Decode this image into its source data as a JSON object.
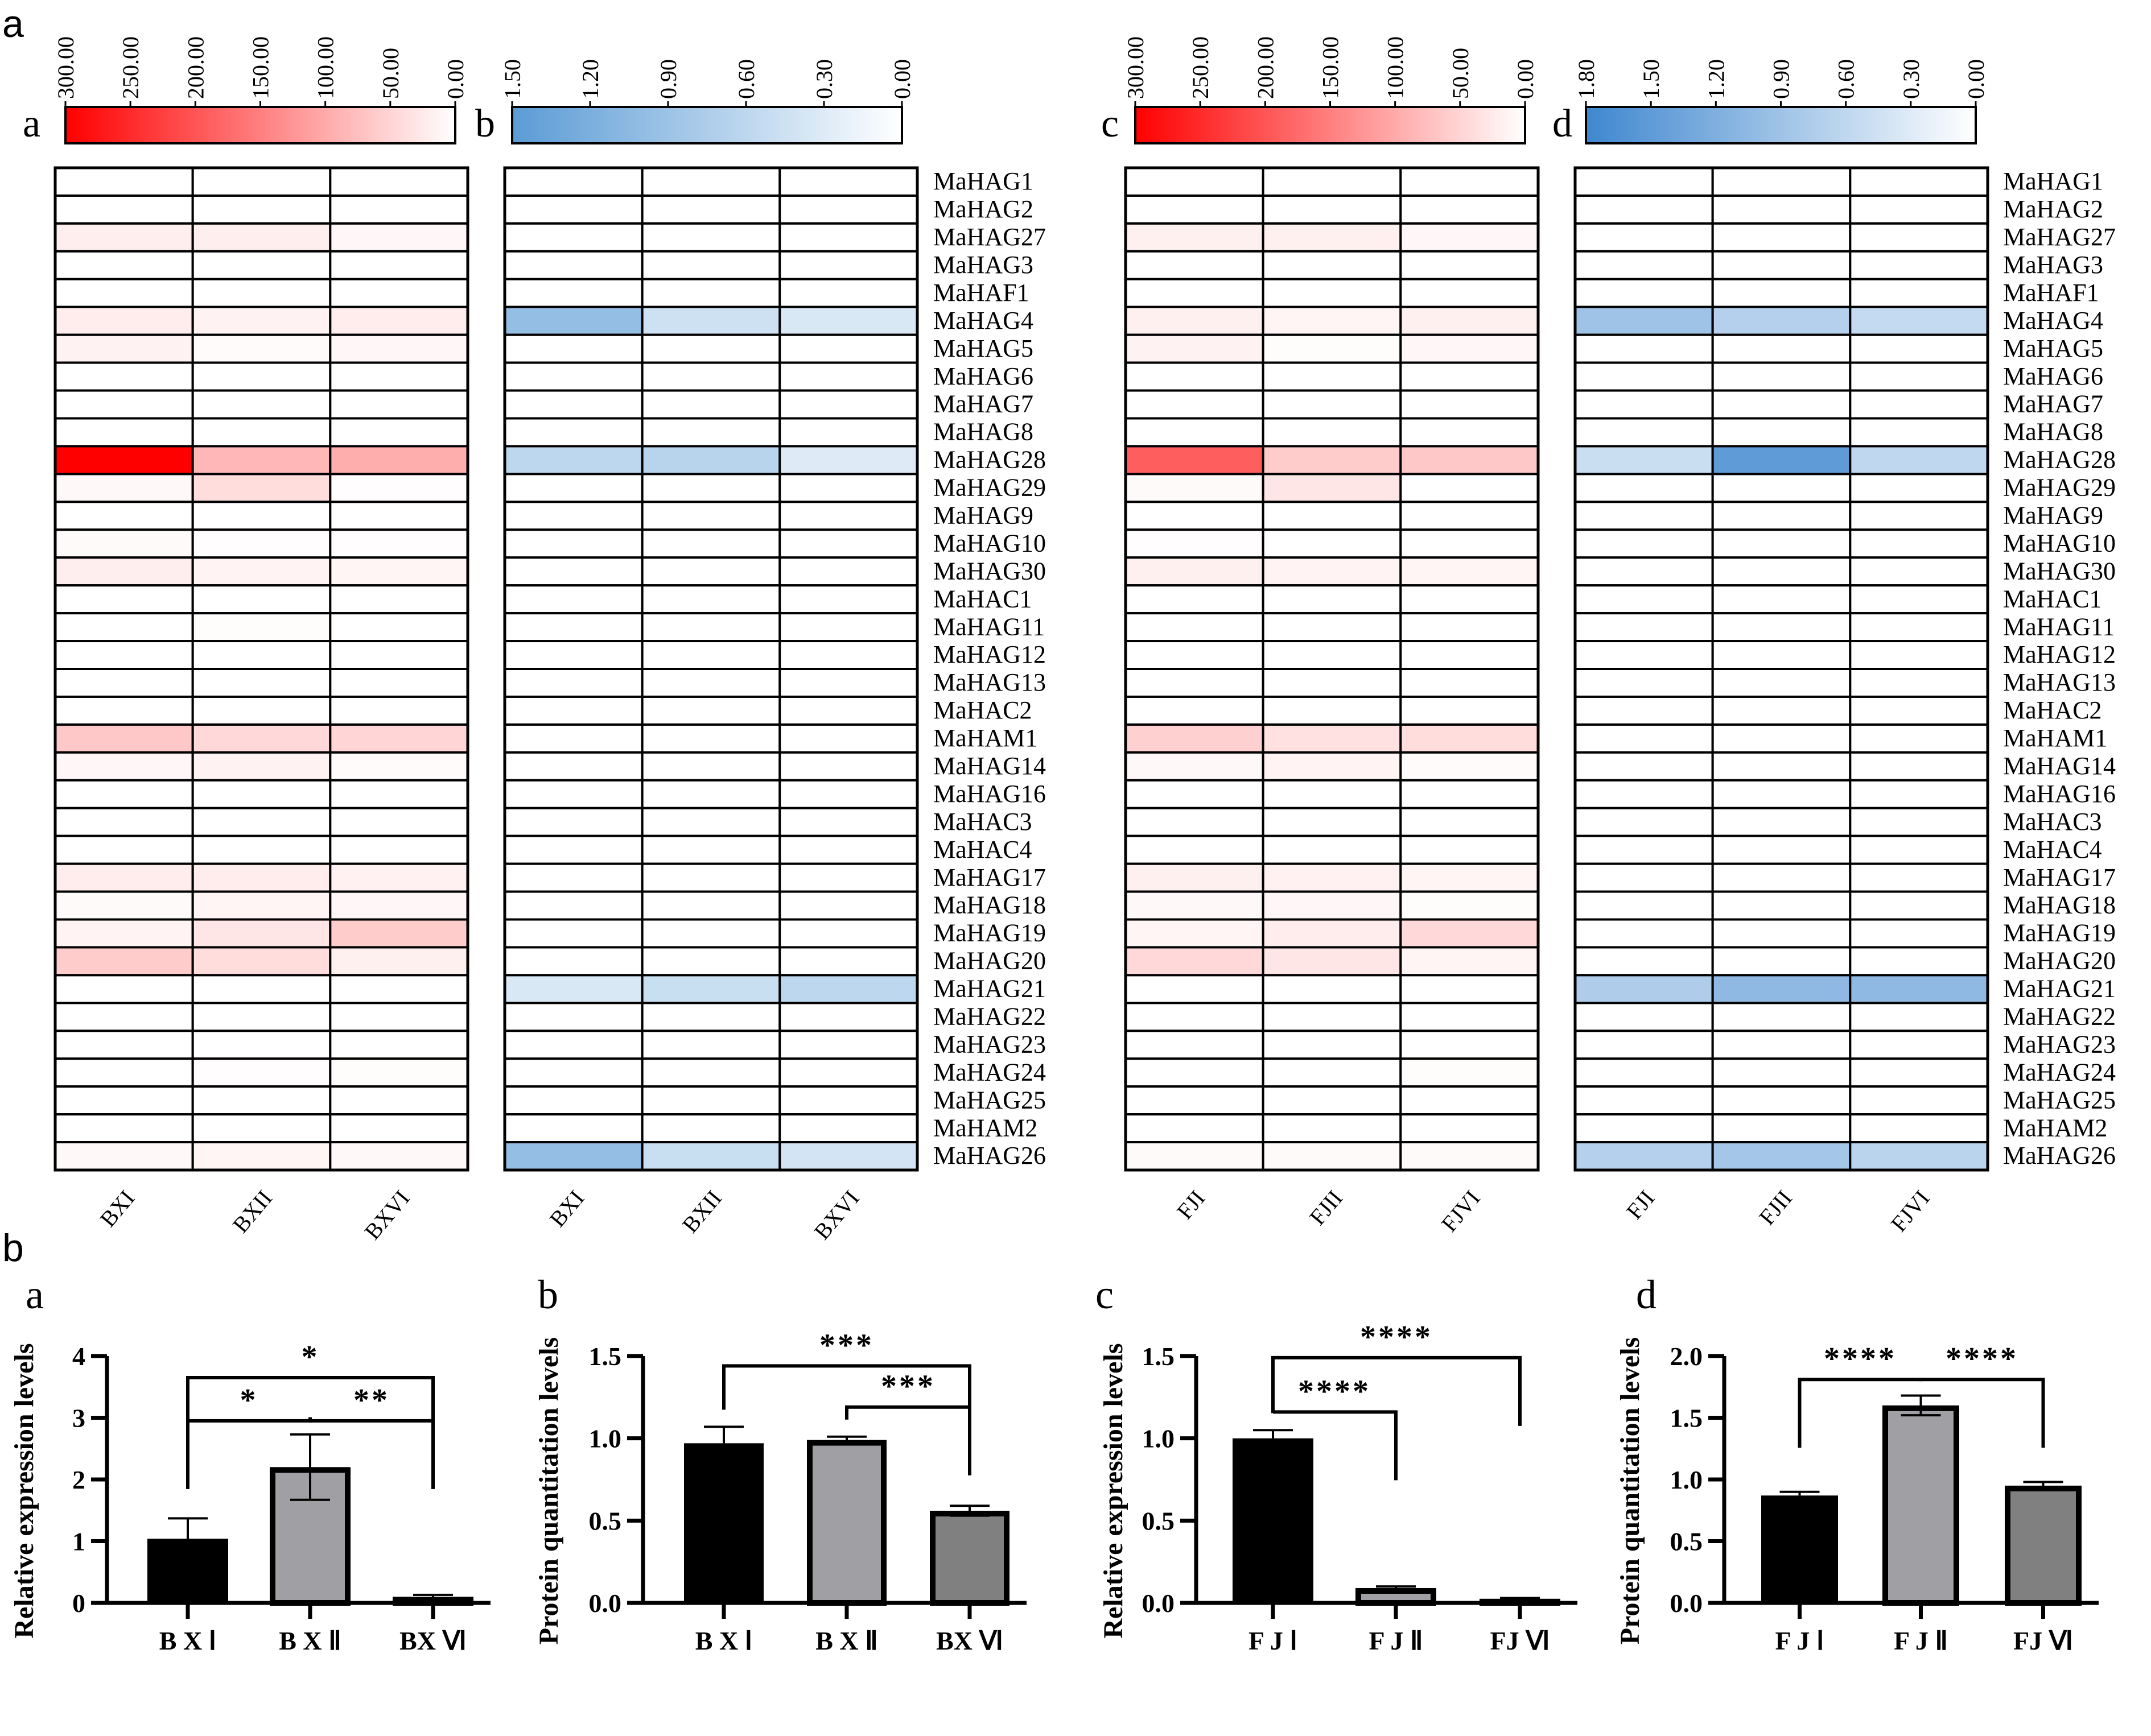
{
  "figure": {
    "section_a_label": "a",
    "section_b_label": "b"
  },
  "chart_data": [
    {
      "type": "heatmap",
      "panel": "a",
      "colorscale": {
        "low": "#ffffff",
        "high": "#ff0000"
      },
      "colorbar_ticks": [
        "300.00",
        "250.00",
        "200.00",
        "150.00",
        "100.00",
        "50.00",
        "0.00"
      ],
      "range": [
        0,
        300
      ],
      "columns": [
        "BXI",
        "BXII",
        "BXVI"
      ],
      "rows": [
        "MaHAG1",
        "MaHAG2",
        "MaHAG27",
        "MaHAG3",
        "MaHAF1",
        "MaHAG4",
        "MaHAG5",
        "MaHAG6",
        "MaHAG7",
        "MaHAG8",
        "MaHAG28",
        "MaHAG29",
        "MaHAG9",
        "MaHAG10",
        "MaHAG30",
        "MaHAC1",
        "MaHAG11",
        "MaHAG12",
        "MaHAG13",
        "MaHAC2",
        "MaHAM1",
        "MaHAG14",
        "MaHAG16",
        "MaHAC3",
        "MaHAC4",
        "MaHAG17",
        "MaHAG18",
        "MaHAG19",
        "MaHAG20",
        "MaHAG21",
        "MaHAG22",
        "MaHAG23",
        "MaHAG24",
        "MaHAG25",
        "MaHAM2",
        "MaHAG26"
      ],
      "values": [
        [
          0,
          0,
          0
        ],
        [
          0,
          0,
          0
        ],
        [
          20,
          20,
          10
        ],
        [
          0,
          0,
          0
        ],
        [
          0,
          0,
          0
        ],
        [
          22,
          15,
          22
        ],
        [
          15,
          5,
          10
        ],
        [
          0,
          0,
          0
        ],
        [
          0,
          0,
          0
        ],
        [
          0,
          0,
          0
        ],
        [
          300,
          85,
          95
        ],
        [
          8,
          40,
          2
        ],
        [
          0,
          0,
          0
        ],
        [
          6,
          2,
          2
        ],
        [
          20,
          14,
          12
        ],
        [
          0,
          0,
          0
        ],
        [
          0,
          3,
          0
        ],
        [
          0,
          0,
          0
        ],
        [
          0,
          0,
          0
        ],
        [
          0,
          0,
          0
        ],
        [
          65,
          45,
          50
        ],
        [
          10,
          15,
          5
        ],
        [
          0,
          0,
          0
        ],
        [
          0,
          0,
          0
        ],
        [
          0,
          0,
          0
        ],
        [
          22,
          22,
          16
        ],
        [
          6,
          12,
          10
        ],
        [
          14,
          30,
          60
        ],
        [
          60,
          40,
          18
        ],
        [
          0,
          0,
          0
        ],
        [
          0,
          0,
          0
        ],
        [
          0,
          0,
          0
        ],
        [
          0,
          2,
          4
        ],
        [
          0,
          0,
          0
        ],
        [
          0,
          0,
          0
        ],
        [
          8,
          12,
          8
        ]
      ]
    },
    {
      "type": "heatmap",
      "panel": "b",
      "colorscale": {
        "low": "#ffffff",
        "high": "#5b9bd5"
      },
      "colorbar_ticks": [
        "1.50",
        "1.20",
        "0.90",
        "0.60",
        "0.30",
        "0.00"
      ],
      "range": [
        0,
        1.5
      ],
      "columns": [
        "BXI",
        "BXII",
        "BXVI"
      ],
      "rows": [
        "MaHAG1",
        "MaHAG2",
        "MaHAG27",
        "MaHAG3",
        "MaHAF1",
        "MaHAG4",
        "MaHAG5",
        "MaHAG6",
        "MaHAG7",
        "MaHAG8",
        "MaHAG28",
        "MaHAG29",
        "MaHAG9",
        "MaHAG10",
        "MaHAG30",
        "MaHAC1",
        "MaHAG11",
        "MaHAG12",
        "MaHAG13",
        "MaHAC2",
        "MaHAM1",
        "MaHAG14",
        "MaHAG16",
        "MaHAC3",
        "MaHAC4",
        "MaHAG17",
        "MaHAG18",
        "MaHAG19",
        "MaHAG20",
        "MaHAG21",
        "MaHAG22",
        "MaHAG23",
        "MaHAG24",
        "MaHAG25",
        "MaHAM2",
        "MaHAG26"
      ],
      "values": [
        [
          0,
          0,
          0
        ],
        [
          0,
          0,
          0
        ],
        [
          0,
          0,
          0
        ],
        [
          0,
          0,
          0
        ],
        [
          0,
          0,
          0
        ],
        [
          0.98,
          0.45,
          0.35
        ],
        [
          0,
          0,
          0
        ],
        [
          0,
          0,
          0
        ],
        [
          0,
          0,
          0
        ],
        [
          0,
          0,
          0
        ],
        [
          0.6,
          0.65,
          0.3
        ],
        [
          0,
          0,
          0
        ],
        [
          0,
          0,
          0
        ],
        [
          0,
          0,
          0
        ],
        [
          0,
          0,
          0
        ],
        [
          0,
          0,
          0
        ],
        [
          0,
          0,
          0
        ],
        [
          0,
          0,
          0
        ],
        [
          0,
          0,
          0
        ],
        [
          0,
          0,
          0
        ],
        [
          0,
          0,
          0
        ],
        [
          0,
          0,
          0
        ],
        [
          0,
          0,
          0
        ],
        [
          0,
          0,
          0
        ],
        [
          0,
          0,
          0
        ],
        [
          0,
          0,
          0
        ],
        [
          0,
          0,
          0
        ],
        [
          0,
          0,
          0
        ],
        [
          0,
          0,
          0
        ],
        [
          0.35,
          0.5,
          0.6
        ],
        [
          0,
          0,
          0
        ],
        [
          0,
          0,
          0
        ],
        [
          0,
          0,
          0
        ],
        [
          0,
          0,
          0
        ],
        [
          0,
          0,
          0
        ],
        [
          0.98,
          0.5,
          0.4
        ]
      ]
    },
    {
      "type": "heatmap",
      "panel": "c",
      "colorscale": {
        "low": "#ffffff",
        "high": "#ff0000"
      },
      "colorbar_ticks": [
        "300.00",
        "250.00",
        "200.00",
        "150.00",
        "100.00",
        "50.00",
        "0.00"
      ],
      "range": [
        0,
        300
      ],
      "columns": [
        "FJI",
        "FJII",
        "FJVI"
      ],
      "rows": [
        "MaHAG1",
        "MaHAG2",
        "MaHAG27",
        "MaHAG3",
        "MaHAF1",
        "MaHAG4",
        "MaHAG5",
        "MaHAG6",
        "MaHAG7",
        "MaHAG8",
        "MaHAG28",
        "MaHAG29",
        "MaHAG9",
        "MaHAG10",
        "MaHAG30",
        "MaHAC1",
        "MaHAG11",
        "MaHAG12",
        "MaHAG13",
        "MaHAC2",
        "MaHAM1",
        "MaHAG14",
        "MaHAG16",
        "MaHAC3",
        "MaHAC4",
        "MaHAG17",
        "MaHAG18",
        "MaHAG19",
        "MaHAG20",
        "MaHAG21",
        "MaHAG22",
        "MaHAG23",
        "MaHAG24",
        "MaHAG25",
        "MaHAM2",
        "MaHAG26"
      ],
      "values": [
        [
          0,
          0,
          0
        ],
        [
          0,
          0,
          0
        ],
        [
          18,
          18,
          10
        ],
        [
          0,
          0,
          0
        ],
        [
          0,
          0,
          0
        ],
        [
          18,
          12,
          18
        ],
        [
          15,
          3,
          10
        ],
        [
          0,
          0,
          0
        ],
        [
          0,
          0,
          0
        ],
        [
          0,
          0,
          0
        ],
        [
          190,
          60,
          65
        ],
        [
          6,
          30,
          0
        ],
        [
          0,
          0,
          0
        ],
        [
          2,
          0,
          0
        ],
        [
          18,
          14,
          12
        ],
        [
          0,
          0,
          0
        ],
        [
          0,
          0,
          0
        ],
        [
          0,
          0,
          0
        ],
        [
          0,
          0,
          0
        ],
        [
          0,
          0,
          0
        ],
        [
          55,
          35,
          40
        ],
        [
          8,
          14,
          5
        ],
        [
          0,
          0,
          0
        ],
        [
          0,
          0,
          0
        ],
        [
          0,
          0,
          0
        ],
        [
          18,
          16,
          12
        ],
        [
          8,
          10,
          4
        ],
        [
          12,
          22,
          45
        ],
        [
          45,
          30,
          12
        ],
        [
          0,
          0,
          0
        ],
        [
          0,
          0,
          0
        ],
        [
          0,
          0,
          0
        ],
        [
          0,
          0,
          4
        ],
        [
          0,
          0,
          0
        ],
        [
          0,
          0,
          0
        ],
        [
          6,
          6,
          6
        ]
      ]
    },
    {
      "type": "heatmap",
      "panel": "d",
      "colorscale": {
        "low": "#ffffff",
        "high": "#3f87cf"
      },
      "colorbar_ticks": [
        "1.80",
        "1.50",
        "1.20",
        "0.90",
        "0.60",
        "0.30",
        "0.00"
      ],
      "range": [
        0,
        1.8
      ],
      "columns": [
        "FJI",
        "FJII",
        "FJVI"
      ],
      "rows": [
        "MaHAG1",
        "MaHAG2",
        "MaHAG27",
        "MaHAG3",
        "MaHAF1",
        "MaHAG4",
        "MaHAG5",
        "MaHAG6",
        "MaHAG7",
        "MaHAG8",
        "MaHAG28",
        "MaHAG29",
        "MaHAG9",
        "MaHAG10",
        "MaHAG30",
        "MaHAC1",
        "MaHAG11",
        "MaHAG12",
        "MaHAG13",
        "MaHAC2",
        "MaHAM1",
        "MaHAG14",
        "MaHAG16",
        "MaHAC3",
        "MaHAC4",
        "MaHAG17",
        "MaHAG18",
        "MaHAG19",
        "MaHAG20",
        "MaHAG21",
        "MaHAG22",
        "MaHAG23",
        "MaHAG24",
        "MaHAG25",
        "MaHAM2",
        "MaHAG26"
      ],
      "values": [
        [
          0,
          0,
          0
        ],
        [
          0,
          0,
          0
        ],
        [
          0,
          0,
          0
        ],
        [
          0,
          0,
          0
        ],
        [
          0,
          0,
          0
        ],
        [
          0.9,
          0.7,
          0.55
        ],
        [
          0,
          0,
          0
        ],
        [
          0,
          0,
          0
        ],
        [
          0,
          0,
          0
        ],
        [
          0,
          0,
          0
        ],
        [
          0.5,
          1.5,
          0.6
        ],
        [
          0,
          0,
          0
        ],
        [
          0,
          0,
          0
        ],
        [
          0,
          0,
          0
        ],
        [
          0,
          0,
          0
        ],
        [
          0,
          0,
          0
        ],
        [
          0,
          0,
          0
        ],
        [
          0,
          0,
          0
        ],
        [
          0,
          0,
          0
        ],
        [
          0,
          0,
          0
        ],
        [
          0,
          0,
          0
        ],
        [
          0,
          0,
          0
        ],
        [
          0,
          0,
          0
        ],
        [
          0,
          0,
          0
        ],
        [
          0,
          0,
          0
        ],
        [
          0,
          0,
          0
        ],
        [
          0,
          0,
          0
        ],
        [
          0,
          0,
          0
        ],
        [
          0,
          0,
          0
        ],
        [
          0.75,
          1.05,
          1.05
        ],
        [
          0,
          0,
          0
        ],
        [
          0,
          0,
          0
        ],
        [
          0,
          0,
          0
        ],
        [
          0,
          0,
          0
        ],
        [
          0,
          0,
          0
        ],
        [
          0.7,
          0.85,
          0.65
        ]
      ]
    },
    {
      "type": "bar",
      "panel": "a",
      "ylabel": "Relative expression levels",
      "categories": [
        "B X   Ⅰ",
        "B X  Ⅱ",
        "BX Ⅵ"
      ],
      "values": [
        1.04,
        2.2,
        0.1
      ],
      "errors": [
        0.33,
        0.53,
        0.03
      ],
      "colors": [
        "#000000",
        "#a0a0a4",
        "#808080"
      ],
      "ylim": [
        0,
        4
      ],
      "yticks": [
        "0",
        "1",
        "2",
        "3",
        "4"
      ],
      "ytick_values": [
        0,
        1,
        2,
        3,
        4
      ],
      "significance": [
        {
          "from": 0,
          "to": 1,
          "label": "*",
          "y": 2.95
        },
        {
          "from": 1,
          "to": 2,
          "label": "**",
          "y": 2.95
        },
        {
          "from": 0,
          "to": 2,
          "label": "*",
          "y": 3.65
        }
      ]
    },
    {
      "type": "bar",
      "panel": "b",
      "ylabel": "Protein quantitation levels",
      "categories": [
        "B X   Ⅰ",
        "B X  Ⅱ",
        "BX Ⅵ"
      ],
      "values": [
        0.97,
        0.99,
        0.56
      ],
      "errors": [
        0.1,
        0.02,
        0.03
      ],
      "colors": [
        "#000000",
        "#a0a0a4",
        "#808080"
      ],
      "ylim": [
        0,
        1.5
      ],
      "yticks": [
        "0.0",
        "0.5",
        "1.0",
        "1.5"
      ],
      "ytick_values": [
        0,
        0.5,
        1.0,
        1.5
      ],
      "significance": [
        {
          "from": 1,
          "to": 2,
          "label": "***",
          "y": 1.19
        },
        {
          "from": 0,
          "to": 2,
          "label": "***",
          "y": 1.44
        }
      ]
    },
    {
      "type": "bar",
      "panel": "c",
      "ylabel": "Relative expression levels",
      "categories": [
        "F J   Ⅰ",
        "F J  Ⅱ",
        "FJ Ⅵ"
      ],
      "values": [
        1.0,
        0.09,
        0.025
      ],
      "errors": [
        0.05,
        0.01,
        0.005
      ],
      "colors": [
        "#000000",
        "#a0a0a4",
        "#808080"
      ],
      "ylim": [
        0,
        1.5
      ],
      "yticks": [
        "0.0",
        "0.5",
        "1.0",
        "1.5"
      ],
      "ytick_values": [
        0,
        0.5,
        1.0,
        1.5
      ],
      "significance": [
        {
          "from": 0,
          "to": 1,
          "label": "****",
          "y": 1.16
        },
        {
          "from": 0,
          "to": 2,
          "label": "****",
          "y": 1.49
        }
      ]
    },
    {
      "type": "bar",
      "panel": "d",
      "ylabel": "Protein quantitation levels",
      "categories": [
        "F J   Ⅰ",
        "F J  Ⅱ",
        "FJ Ⅵ"
      ],
      "values": [
        0.87,
        1.6,
        0.95
      ],
      "errors": [
        0.03,
        0.08,
        0.03
      ],
      "colors": [
        "#000000",
        "#a0a0a4",
        "#808080"
      ],
      "ylim": [
        0,
        2.0
      ],
      "yticks": [
        "0.0",
        "0.5",
        "1.0",
        "1.5",
        "2.0"
      ],
      "ytick_values": [
        0,
        0.5,
        1.0,
        1.5,
        2.0
      ],
      "significance": [
        {
          "from": 0,
          "to": 1,
          "label": "****",
          "y": 1.81
        },
        {
          "from": 1,
          "to": 2,
          "label": "****",
          "y": 1.81
        }
      ]
    }
  ]
}
